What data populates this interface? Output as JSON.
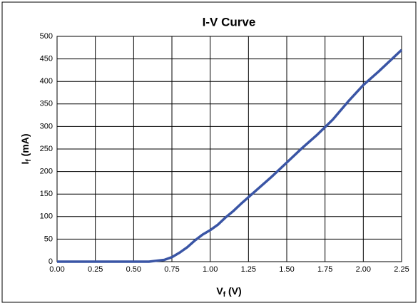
{
  "chart_data": {
    "type": "line",
    "title": "I-V Curve",
    "xlabel": [
      "V",
      "f",
      " (V)"
    ],
    "ylabel": [
      "I",
      "f",
      " (mA)"
    ],
    "x": [
      0,
      0.25,
      0.5,
      0.6,
      0.65,
      0.7,
      0.75,
      0.8,
      0.85,
      0.9,
      0.95,
      1.0,
      1.05,
      1.1,
      1.15,
      1.2,
      1.3,
      1.4,
      1.5,
      1.6,
      1.7,
      1.8,
      1.9,
      2.0,
      2.1,
      2.25
    ],
    "series": [
      {
        "name": "I-V",
        "color": "#3a55a5",
        "values": [
          0,
          0,
          0,
          0,
          2,
          4,
          10,
          20,
          32,
          47,
          60,
          70,
          82,
          98,
          112,
          128,
          158,
          188,
          220,
          252,
          282,
          315,
          355,
          392,
          422,
          470
        ]
      }
    ],
    "xlim": [
      0,
      2.25
    ],
    "xticks": [
      {
        "value": 0,
        "label": "0.00"
      },
      {
        "value": 0.25,
        "label": "0.25"
      },
      {
        "value": 0.5,
        "label": "0.50"
      },
      {
        "value": 0.75,
        "label": "0.75"
      },
      {
        "value": 1.0,
        "label": "1.00"
      },
      {
        "value": 1.25,
        "label": "1.25"
      },
      {
        "value": 1.5,
        "label": "1.50"
      },
      {
        "value": 1.75,
        "label": "1.75"
      },
      {
        "value": 2.0,
        "label": "2.00"
      },
      {
        "value": 2.25,
        "label": "2.25"
      }
    ],
    "ylim": [
      0,
      500
    ],
    "yticks": [
      0,
      50,
      100,
      150,
      200,
      250,
      300,
      350,
      400,
      450,
      500
    ],
    "grid": true
  }
}
